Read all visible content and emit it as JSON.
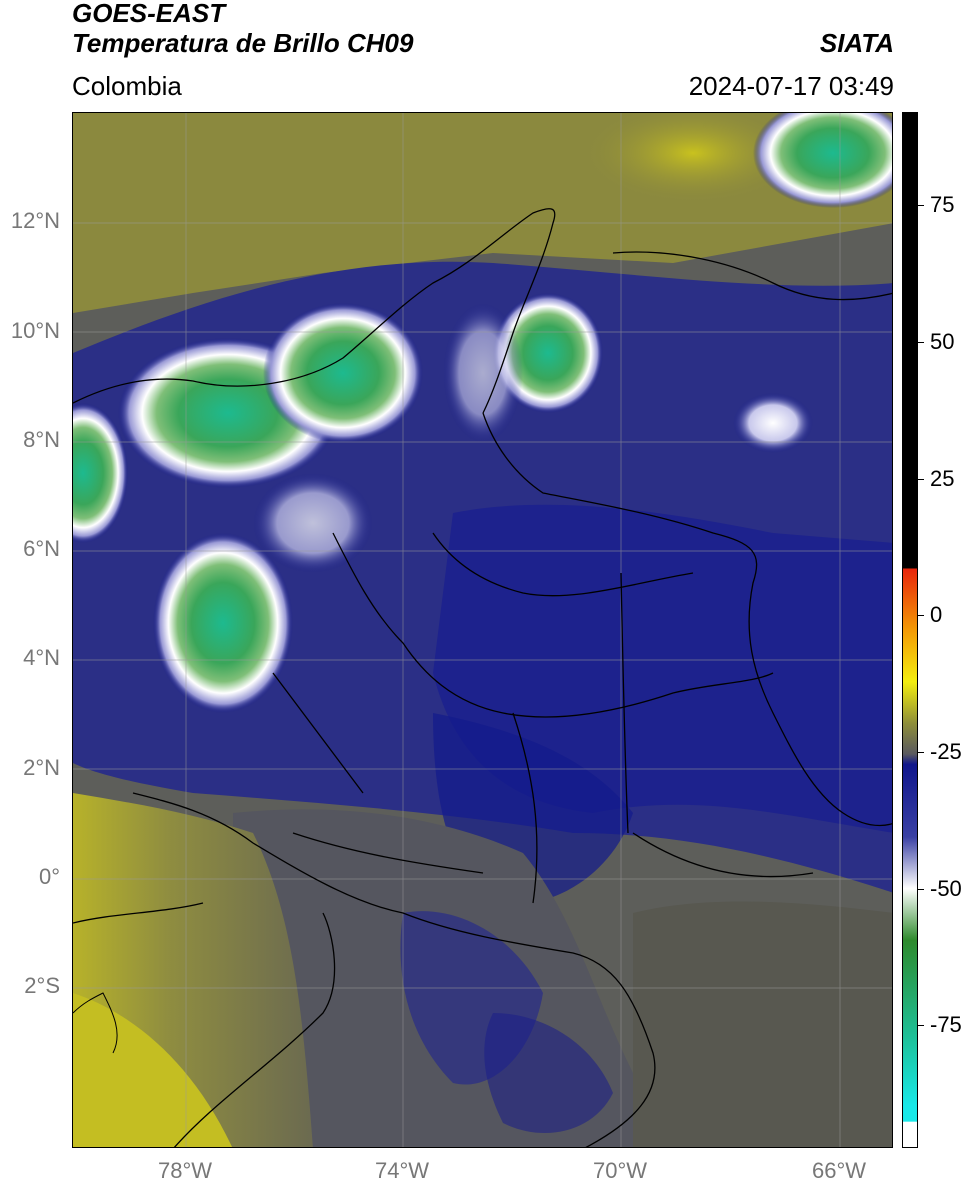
{
  "header": {
    "satellite": "GOES-EAST",
    "product": "Temperatura de Brillo CH09",
    "region": "Colombia",
    "organization": "SIATA",
    "datetime": "2024-07-17 03:49"
  },
  "map": {
    "lat_labels": [
      "12°N",
      "10°N",
      "8°N",
      "6°N",
      "4°N",
      "2°N",
      "0°",
      "2°S"
    ],
    "lon_labels": [
      "78°W",
      "74°W",
      "70°W",
      "66°W"
    ],
    "lon_range": [
      -80,
      -65
    ],
    "lat_range": [
      -5,
      14
    ]
  },
  "colorbar": {
    "tick_labels": [
      "75",
      "50",
      "25",
      "0",
      "-25",
      "-50",
      "-75"
    ],
    "range": [
      -95,
      90
    ],
    "colors": {
      "warm_top": "#000000",
      "red": "#e8250b",
      "orange": "#f39a06",
      "yellow": "#f3ee10",
      "olive": "#8f8f38",
      "gray": "#5a5a60",
      "navy": "#10168c",
      "white": "#ffffff",
      "green": "#2e8a2c",
      "teal": "#1cc4a0",
      "cyan": "#19e8e8"
    }
  }
}
